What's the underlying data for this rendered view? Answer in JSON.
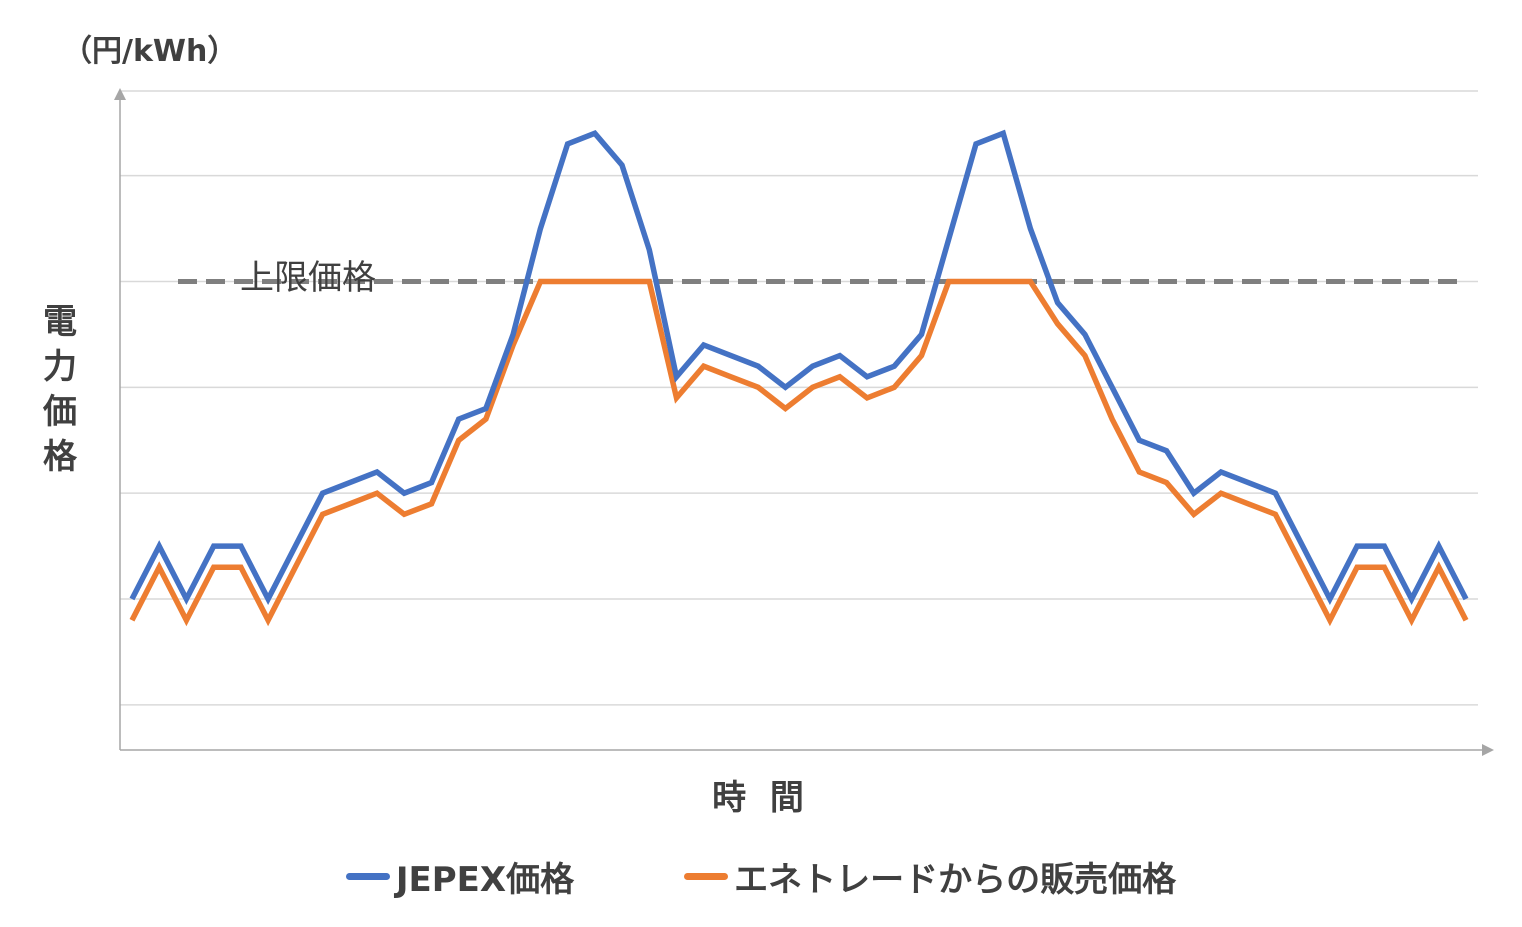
{
  "colors": {
    "jepex": "#4472C4",
    "entrade": "#ED7D31",
    "limit_line": "#7F7F7F",
    "grid": "#D9D9D9",
    "axis": "#A6A6A6"
  },
  "chart_data": {
    "type": "line",
    "unit_label": "（円/kWh）",
    "ylabel": "電力価格",
    "xlabel": "時 間",
    "ylim": [
      0,
      6
    ],
    "grid": true,
    "grid_lines": [
      0.2,
      1.2,
      2.2,
      3.2,
      4.2,
      5.2,
      6.0
    ],
    "legend_position": "bottom",
    "x": [
      1,
      2,
      3,
      4,
      5,
      6,
      7,
      8,
      9,
      10,
      11,
      12,
      13,
      14,
      15,
      16,
      17,
      18,
      19,
      20,
      21,
      22,
      23,
      24,
      25,
      26,
      27,
      28,
      29,
      30,
      31,
      32,
      33,
      34,
      35,
      36,
      37,
      38,
      39,
      40,
      41,
      42,
      43,
      44,
      45,
      46,
      47,
      48,
      49,
      50
    ],
    "series": [
      {
        "name": "JEPEX価格",
        "values": [
          1.2,
          1.7,
          1.2,
          1.7,
          1.7,
          1.2,
          1.7,
          2.2,
          2.3,
          2.4,
          2.2,
          2.3,
          2.9,
          3.0,
          3.7,
          4.7,
          5.5,
          5.6,
          5.3,
          4.5,
          3.3,
          3.6,
          3.5,
          3.4,
          3.2,
          3.4,
          3.5,
          3.3,
          3.4,
          3.7,
          4.6,
          5.5,
          5.6,
          4.7,
          4.0,
          3.7,
          3.2,
          2.7,
          2.6,
          2.2,
          2.4,
          2.3,
          2.2,
          1.7,
          1.2,
          1.7,
          1.7,
          1.2,
          1.7,
          1.2
        ]
      },
      {
        "name": "エネトレードからの販売価格",
        "values": [
          1.0,
          1.5,
          1.0,
          1.5,
          1.5,
          1.0,
          1.5,
          2.0,
          2.1,
          2.2,
          2.0,
          2.1,
          2.7,
          2.9,
          3.6,
          4.2,
          4.2,
          4.2,
          4.2,
          4.2,
          3.1,
          3.4,
          3.3,
          3.2,
          3.0,
          3.2,
          3.3,
          3.1,
          3.2,
          3.5,
          4.2,
          4.2,
          4.2,
          4.2,
          3.8,
          3.5,
          2.9,
          2.4,
          2.3,
          2.0,
          2.2,
          2.1,
          2.0,
          1.5,
          1.0,
          1.5,
          1.5,
          1.0,
          1.5,
          1.0
        ]
      }
    ],
    "annotations": [
      {
        "type": "hline",
        "y": 4.2,
        "label": "上限価格",
        "style": "dashed"
      }
    ]
  }
}
